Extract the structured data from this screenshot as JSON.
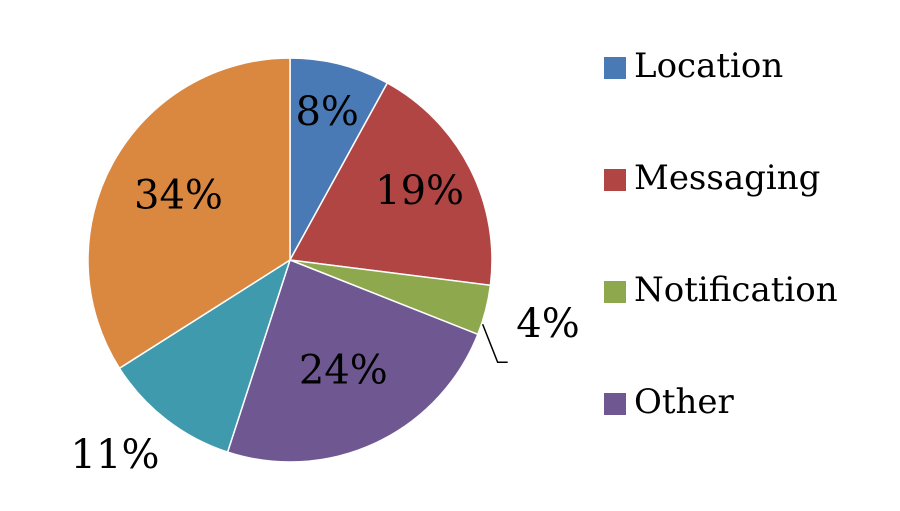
{
  "chart_data": {
    "type": "pie",
    "title": "",
    "legend_position": "right",
    "slices": [
      {
        "name": "Location",
        "value": 8,
        "label": "8%",
        "color": "#4a7ab5"
      },
      {
        "name": "Messaging",
        "value": 19,
        "label": "19%",
        "color": "#b14543"
      },
      {
        "name": "Notification",
        "value": 4,
        "label": "4%",
        "color": "#8ea84d"
      },
      {
        "name": "Other",
        "value": 24,
        "label": "24%",
        "color": "#6f5891"
      },
      {
        "name": "",
        "value": 11,
        "label": "11%",
        "color": "#3f9aad"
      },
      {
        "name": "",
        "value": 34,
        "label": "34%",
        "color": "#da8740"
      }
    ],
    "legend": [
      "Location",
      "Messaging",
      "Notification",
      "Other"
    ]
  }
}
